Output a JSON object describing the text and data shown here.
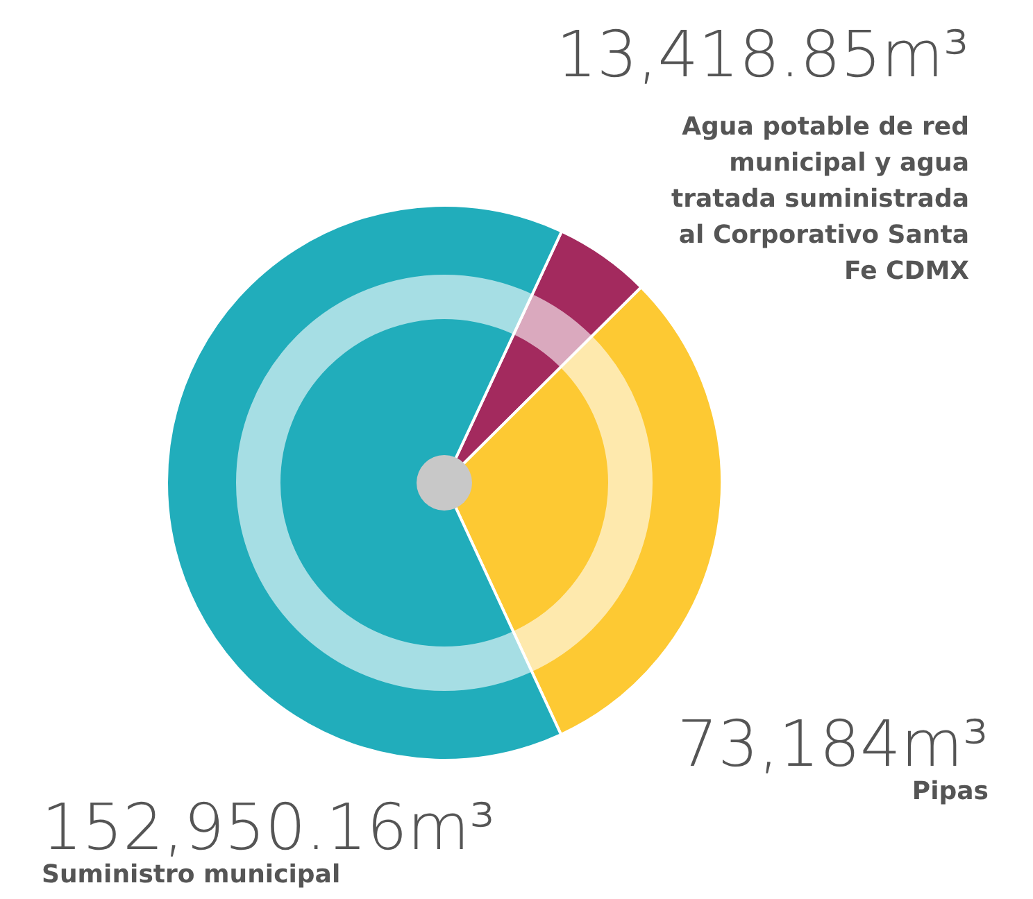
{
  "chart_data": {
    "type": "pie",
    "categories": [
      "Agua potable de red municipal y agua tratada suministrada al Corporativo Santa Fe CDMX",
      "Pipas",
      "Suministro municipal"
    ],
    "values": [
      13418.85,
      73184,
      152950.16
    ],
    "colors": [
      "#a32a5e",
      "#fdc933",
      "#21adbb"
    ],
    "value_labels": [
      "13,418.85m³",
      "73,184m³",
      "152,950.16m³"
    ]
  }
}
